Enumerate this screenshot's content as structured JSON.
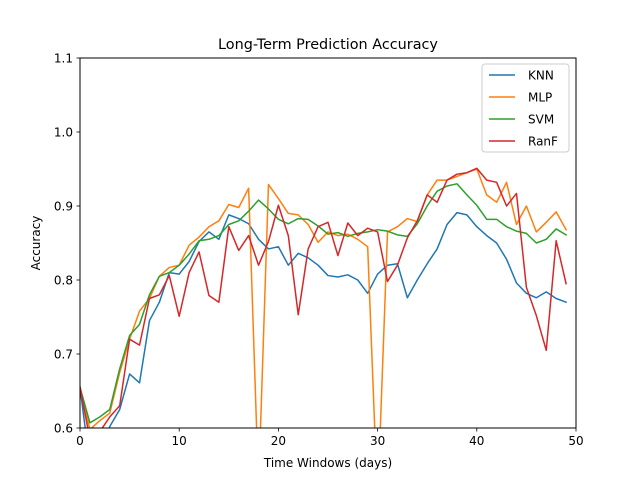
{
  "chart_data": {
    "type": "line",
    "title": "Long-Term Prediction Accuracy",
    "xlabel": "Time Windows (days)",
    "ylabel": "Accuracy",
    "xlim": [
      0,
      50
    ],
    "ylim": [
      0.6,
      1.1
    ],
    "xticks": [
      0,
      10,
      20,
      30,
      40,
      50
    ],
    "yticks": [
      0.6,
      0.7,
      0.8,
      0.9,
      1.0,
      1.1
    ],
    "xtick_labels": [
      "0",
      "10",
      "20",
      "30",
      "40",
      "50"
    ],
    "ytick_labels": [
      "0.6",
      "0.7",
      "0.8",
      "0.9",
      "1.0",
      "1.1"
    ],
    "grid": false,
    "legend_position": "top-right",
    "x": [
      0,
      1,
      2,
      3,
      4,
      5,
      6,
      7,
      8,
      9,
      10,
      11,
      12,
      13,
      14,
      15,
      16,
      17,
      18,
      19,
      20,
      21,
      22,
      23,
      24,
      25,
      26,
      27,
      28,
      29,
      30,
      31,
      32,
      33,
      34,
      35,
      36,
      37,
      38,
      39,
      40,
      41,
      42,
      43,
      44,
      45,
      46,
      47,
      48,
      49
    ],
    "series": [
      {
        "name": "KNN",
        "color": "#1f77b4",
        "values": [
          0.655,
          0.55,
          0.57,
          0.602,
          0.625,
          0.673,
          0.661,
          0.745,
          0.77,
          0.81,
          0.808,
          0.825,
          0.852,
          0.865,
          0.855,
          0.888,
          0.883,
          0.876,
          0.855,
          0.842,
          0.845,
          0.82,
          0.836,
          0.83,
          0.82,
          0.806,
          0.804,
          0.807,
          0.8,
          0.782,
          0.808,
          0.82,
          0.822,
          0.776,
          0.8,
          0.822,
          0.842,
          0.875,
          0.891,
          0.888,
          0.872,
          0.86,
          0.85,
          0.828,
          0.796,
          0.782,
          0.776,
          0.784,
          0.775,
          0.77
        ]
      },
      {
        "name": "MLP",
        "color": "#ff7f0e",
        "values": [
          0.655,
          0.598,
          0.61,
          0.62,
          0.675,
          0.72,
          0.758,
          0.775,
          0.805,
          0.817,
          0.82,
          0.847,
          0.858,
          0.872,
          0.88,
          0.902,
          0.898,
          0.924,
          0.52,
          0.929,
          0.91,
          0.89,
          0.888,
          0.875,
          0.851,
          0.865,
          0.86,
          0.862,
          0.855,
          0.845,
          0.5,
          0.865,
          0.872,
          0.883,
          0.879,
          0.915,
          0.935,
          0.935,
          0.94,
          0.945,
          0.95,
          0.915,
          0.905,
          0.932,
          0.875,
          0.9,
          0.865,
          0.878,
          0.892,
          0.868
        ]
      },
      {
        "name": "SVM",
        "color": "#2ca02c",
        "values": [
          0.655,
          0.607,
          0.615,
          0.625,
          0.68,
          0.725,
          0.74,
          0.78,
          0.805,
          0.81,
          0.82,
          0.835,
          0.853,
          0.855,
          0.86,
          0.875,
          0.88,
          0.893,
          0.908,
          0.896,
          0.882,
          0.876,
          0.883,
          0.882,
          0.873,
          0.862,
          0.864,
          0.859,
          0.863,
          0.865,
          0.868,
          0.866,
          0.861,
          0.859,
          0.876,
          0.9,
          0.92,
          0.927,
          0.93,
          0.915,
          0.901,
          0.882,
          0.882,
          0.872,
          0.866,
          0.863,
          0.85,
          0.855,
          0.869,
          0.861
        ]
      },
      {
        "name": "RanF",
        "color": "#d62728",
        "values": [
          0.655,
          0.585,
          0.595,
          0.615,
          0.63,
          0.72,
          0.712,
          0.775,
          0.78,
          0.806,
          0.751,
          0.81,
          0.838,
          0.779,
          0.77,
          0.872,
          0.84,
          0.86,
          0.82,
          0.852,
          0.901,
          0.86,
          0.753,
          0.842,
          0.872,
          0.878,
          0.833,
          0.877,
          0.86,
          0.87,
          0.865,
          0.798,
          0.82,
          0.857,
          0.88,
          0.915,
          0.905,
          0.935,
          0.943,
          0.945,
          0.951,
          0.935,
          0.932,
          0.9,
          0.917,
          0.79,
          0.752,
          0.705,
          0.853,
          0.795
        ]
      }
    ]
  }
}
